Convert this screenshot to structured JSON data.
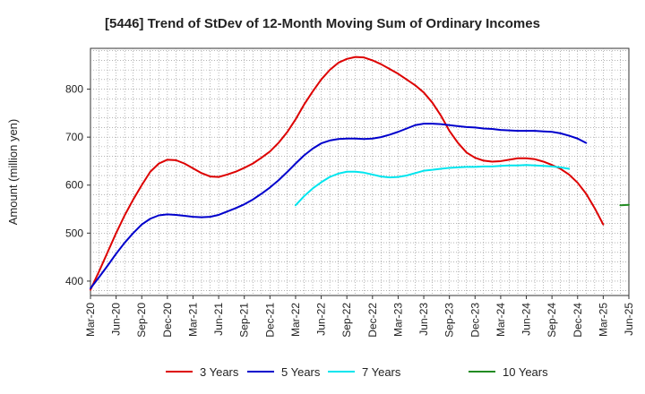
{
  "chart_data": {
    "type": "line",
    "title": "[5446]  Trend of StDev of 12-Month Moving Sum of Ordinary Incomes",
    "xlabel": "",
    "ylabel": "Amount (million yen)",
    "ylim": [
      370,
      885
    ],
    "yticks": [
      400,
      500,
      600,
      700,
      800
    ],
    "x_tick_labels": [
      "Mar-20",
      "Jun-20",
      "Sep-20",
      "Dec-20",
      "Mar-21",
      "Jun-21",
      "Sep-21",
      "Dec-21",
      "Mar-22",
      "Jun-22",
      "Sep-22",
      "Dec-22",
      "Mar-23",
      "Jun-23",
      "Sep-23",
      "Dec-23",
      "Mar-24",
      "Jun-24",
      "Sep-24",
      "Dec-24",
      "Mar-25",
      "Jun-25"
    ],
    "x_range_months": [
      0,
      63
    ],
    "grid": true,
    "legend_position": "bottom",
    "series": [
      {
        "name": "3 Years",
        "color": "#dd0000",
        "start_month": 0,
        "values": [
          382,
          420,
          460,
          500,
          537,
          570,
          600,
          628,
          645,
          653,
          652,
          645,
          635,
          625,
          618,
          617,
          622,
          628,
          636,
          645,
          657,
          670,
          688,
          710,
          737,
          768,
          795,
          820,
          840,
          855,
          863,
          867,
          866,
          860,
          852,
          842,
          832,
          820,
          808,
          793,
          772,
          745,
          713,
          688,
          668,
          657,
          651,
          649,
          650,
          653,
          656,
          656,
          654,
          649,
          642,
          634,
          622,
          605,
          582,
          552,
          518
        ]
      },
      {
        "name": "5 Years",
        "color": "#0000cc",
        "start_month": 0,
        "values": [
          385,
          408,
          432,
          457,
          480,
          500,
          518,
          530,
          537,
          539,
          538,
          536,
          534,
          533,
          534,
          538,
          545,
          552,
          560,
          570,
          582,
          595,
          610,
          627,
          645,
          662,
          676,
          687,
          693,
          696,
          697,
          697,
          696,
          697,
          700,
          705,
          711,
          718,
          725,
          728,
          728,
          727,
          725,
          723,
          721,
          720,
          718,
          717,
          715,
          714,
          713,
          713,
          713,
          712,
          711,
          708,
          703,
          697,
          688
        ]
      },
      {
        "name": "7 Years",
        "color": "#00e5ee",
        "start_month": 24,
        "values": [
          558,
          577,
          593,
          606,
          617,
          624,
          628,
          628,
          626,
          622,
          618,
          616,
          617,
          620,
          625,
          630,
          632,
          634,
          636,
          637,
          638,
          638,
          639,
          639,
          640,
          641,
          641,
          642,
          641,
          640,
          639,
          637,
          634
        ]
      },
      {
        "name": "10 Years",
        "color": "#228B22",
        "start_month": 62,
        "values": [
          558,
          559
        ]
      }
    ]
  }
}
